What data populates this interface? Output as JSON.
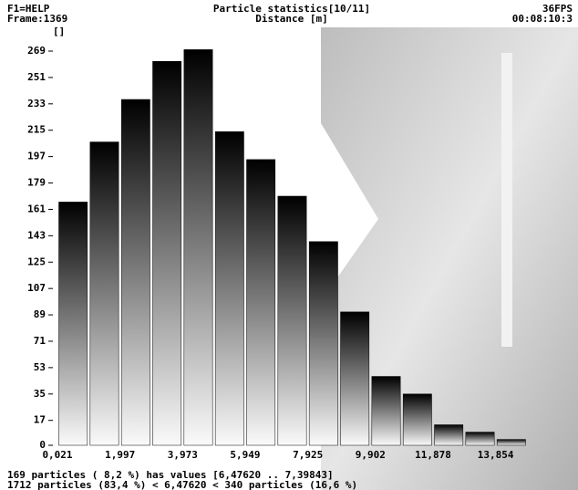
{
  "header": {
    "help": "F1=HELP",
    "frame": "Frame:1369",
    "fps": "36FPS",
    "time": "00:08:10:3"
  },
  "chart_data": {
    "type": "histogram",
    "title": "Particle statistics[10/11]",
    "x_label": "Distance [m]",
    "y_label": "[]",
    "bins": [
      0.021,
      1.009,
      1.997,
      2.985,
      3.973,
      4.961,
      5.949,
      6.937,
      7.925,
      8.914,
      9.902,
      10.89,
      11.878,
      12.866,
      13.854,
      14.842
    ],
    "values": [
      166,
      207,
      236,
      262,
      270,
      214,
      195,
      170,
      139,
      91,
      47,
      35,
      14,
      9,
      4
    ],
    "xlim": [
      0.021,
      14.842
    ],
    "ylim": [
      0,
      269
    ],
    "xticks": [
      {
        "value": 0.021,
        "label": "0,021"
      },
      {
        "value": 1.997,
        "label": "1,997"
      },
      {
        "value": 3.973,
        "label": "3,973"
      },
      {
        "value": 5.949,
        "label": "5,949"
      },
      {
        "value": 7.925,
        "label": "7,925"
      },
      {
        "value": 9.902,
        "label": "9,902"
      },
      {
        "value": 11.878,
        "label": "11,878"
      },
      {
        "value": 13.854,
        "label": "13,854"
      }
    ],
    "yticks": [
      0,
      17,
      35,
      53,
      71,
      89,
      107,
      125,
      143,
      161,
      179,
      197,
      215,
      233,
      251,
      269
    ],
    "color": "#000000"
  },
  "notes": [
    "169 particles ( 8,2 %) has values [6,47620 .. 7,39843]",
    "1712 particles (83,4 %) < 6,47620 < 340 particles (16,6 %)"
  ]
}
